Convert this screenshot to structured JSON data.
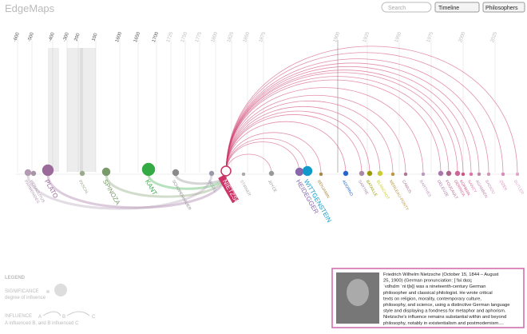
{
  "header": {
    "title": "EdgeMaps",
    "search_placeholder": "Search",
    "selects": [
      "Timeline",
      "Philosophers"
    ]
  },
  "timeline": {
    "years": [
      "-600",
      "-500",
      "-400",
      "-300",
      "200",
      "100",
      "1600",
      "1650",
      "1700",
      "1725",
      "1750",
      "1775",
      "1800",
      "1825",
      "1850",
      "1875",
      "1900",
      "1925",
      "1950",
      "1975",
      "2000",
      "2025"
    ],
    "nodes": [
      {
        "label": "PARMENIDES",
        "color": "#b39ab3"
      },
      {
        "label": "HERACLITUS",
        "color": "#a893a8"
      },
      {
        "label": "PLATO",
        "color": "#9a6a9a"
      },
      {
        "label": "PASCAL",
        "color": "#9aaa8a"
      },
      {
        "label": "SPINOZA",
        "color": "#7a9a6a"
      },
      {
        "label": "KANT",
        "color": "#33aa44"
      },
      {
        "label": "SCHOPENHAUER",
        "color": "#8a8a8a"
      },
      {
        "label": "HEGEL",
        "color": "#9a9aaa"
      },
      {
        "label": "NIETZSCHE",
        "color": "#cc3366"
      },
      {
        "label": "STIRNER",
        "color": "#aaaaaa"
      },
      {
        "label": "JOYCE",
        "color": "#999999"
      },
      {
        "label": "HEIDEGGER",
        "color": "#8866aa"
      },
      {
        "label": "WITTGENSTEIN",
        "color": "#1199cc"
      },
      {
        "label": "BENJAMIN",
        "color": "#aa8844"
      },
      {
        "label": "ADORNO",
        "color": "#2266cc"
      },
      {
        "label": "SARTRE",
        "color": "#aa88aa"
      },
      {
        "label": "BATAILLE",
        "color": "#999900"
      },
      {
        "label": "BLANCHOT",
        "color": "#cccc33"
      },
      {
        "label": "MERLEAU-PONTY",
        "color": "#bb9944"
      },
      {
        "label": "CAMUS",
        "color": "#aa7799"
      },
      {
        "label": "BARTHES",
        "color": "#bb99bb"
      },
      {
        "label": "DELEUZE",
        "color": "#aa77aa"
      },
      {
        "label": "FOUCAULT",
        "color": "#aa6688"
      },
      {
        "label": "DERRIDA",
        "color": "#cc6699"
      },
      {
        "label": "KOFMAN",
        "color": "#cc5588"
      },
      {
        "label": "NANCY",
        "color": "#dd77aa"
      },
      {
        "label": "AGAMBEN",
        "color": "#bb88aa"
      },
      {
        "label": "BADIOU",
        "color": "#cc99bb"
      },
      {
        "label": "ZIZEK",
        "color": "#dd88bb"
      },
      {
        "label": "BUTLER",
        "color": "#ddaacc"
      }
    ]
  },
  "legend": {
    "title": "LEGEND",
    "significance": "SIGNIFICANCE",
    "significance_note": "degree of influence",
    "influence": "INFLUENCE",
    "influence_note": "A influenced B, and B influenced C",
    "a": "A",
    "b": "B",
    "c": "C"
  },
  "info": {
    "lines": [
      "Friedrich Wilhelm Nietzsche (October 15, 1844 – August",
      "25, 1900) (German pronunciation: [ˈfʁiːdʁɪç",
      "ˈvɪlhɛlm ˈniːtʃə]) was a nineteenth-century German",
      "philosopher and classical philologist. He wrote critical",
      "texts on religion, morality, contemporary culture,",
      "philosophy, and science, using a distinctive German language",
      "style and displaying a fondness for metaphor and aphorism.",
      "Nietzsche's influence remains substantial within and beyond",
      "philosophy, notably in existentialism and postmodernism...."
    ]
  }
}
